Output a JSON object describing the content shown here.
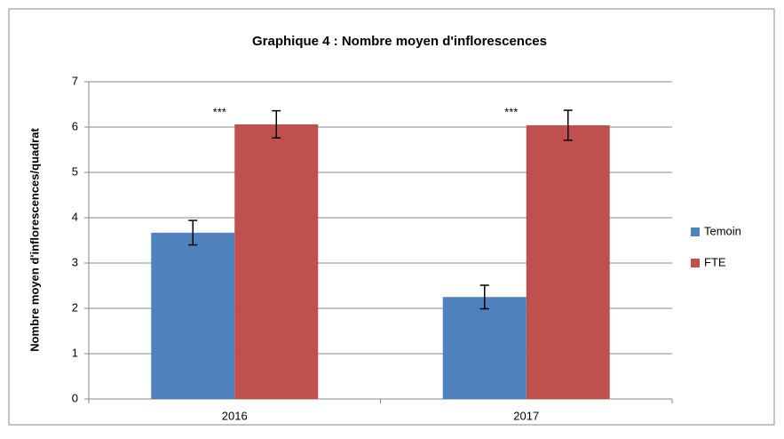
{
  "chart_data": {
    "type": "bar",
    "title": "Graphique 4 : Nombre moyen d'inflorescences",
    "y_label": "Nombre moyen d'inflorescences/quadrat",
    "categories": [
      "2016",
      "2017"
    ],
    "series": [
      {
        "name": "Temoin",
        "color": "#4f81bd",
        "values": [
          3.67,
          2.25
        ],
        "errors": [
          0.27,
          0.26
        ]
      },
      {
        "name": "FTE",
        "color": "#c0504d",
        "values": [
          6.06,
          6.04
        ],
        "errors": [
          0.3,
          0.33
        ]
      }
    ],
    "annotations": [
      "***",
      "***"
    ],
    "ylim": [
      0,
      7
    ],
    "yticks": [
      0,
      1,
      2,
      3,
      4,
      5,
      6,
      7
    ],
    "grid": true,
    "legend": "right"
  }
}
